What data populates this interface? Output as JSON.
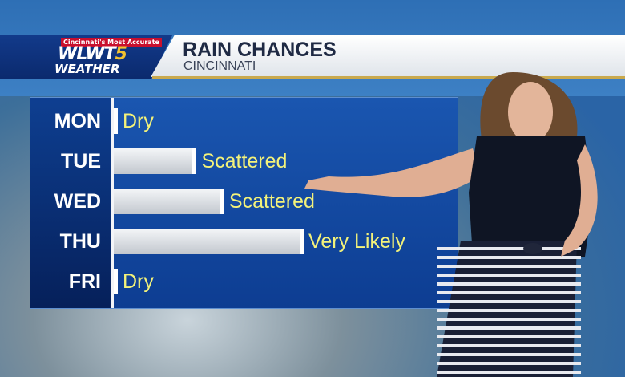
{
  "header": {
    "tagline": "Cincinnati's Most Accurate",
    "logo_main": "WLWT",
    "logo_number": "5",
    "logo_sub": "WEATHER",
    "title": "RAIN CHANCES",
    "subtitle": "CINCINNATI"
  },
  "colors": {
    "bar": "#dfe3e8",
    "label_text": "#f3f27a",
    "panel": "#1650a8"
  },
  "chart_data": {
    "type": "bar",
    "orientation": "horizontal",
    "title": "RAIN CHANCES",
    "subtitle": "CINCINNATI",
    "categories": [
      "MON",
      "TUE",
      "WED",
      "THU",
      "FRI"
    ],
    "values": [
      1,
      24,
      32,
      55,
      1
    ],
    "value_units": "relative bar length, % of chart width (no numeric axis shown)",
    "data_labels": [
      "Dry",
      "Scattered",
      "Scattered",
      "Very Likely",
      "Dry"
    ],
    "grid": false
  }
}
